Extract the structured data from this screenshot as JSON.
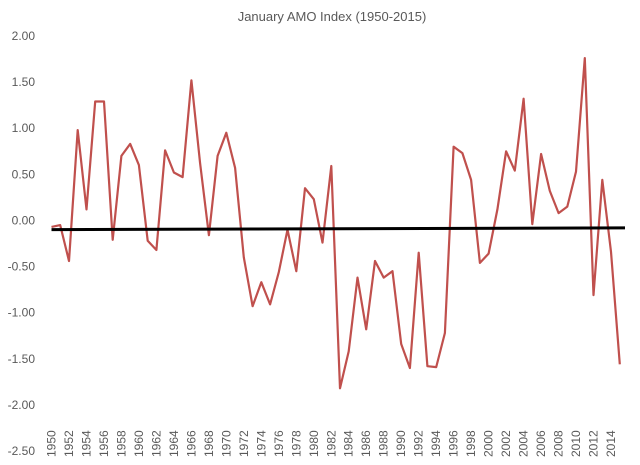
{
  "chart_data": {
    "type": "line",
    "title": "January AMO Index (1950-2015)",
    "xlabel": "",
    "ylabel": "",
    "ylim": [
      -2.5,
      2.0
    ],
    "y_ticks": [
      "2.00",
      "1.50",
      "1.00",
      "0.50",
      "0.00",
      "-0.50",
      "-1.00",
      "-1.50",
      "-2.00",
      "-2.50"
    ],
    "x_tick_labels": [
      "1950",
      "1952",
      "1954",
      "1956",
      "1958",
      "1960",
      "1962",
      "1964",
      "1966",
      "1968",
      "1970",
      "1972",
      "1974",
      "1976",
      "1978",
      "1980",
      "1982",
      "1984",
      "1986",
      "1988",
      "1990",
      "1992",
      "1994",
      "1996",
      "1998",
      "2000",
      "2002",
      "2004",
      "2006",
      "2008",
      "2010",
      "2012",
      "2014"
    ],
    "grid": false,
    "legend": "none",
    "line_color": "#c0504d",
    "reference_line_color": "#000000",
    "series": [
      {
        "x": [
          1950,
          1951,
          1952,
          1953,
          1954,
          1955,
          1956,
          1957,
          1958,
          1959,
          1960,
          1961,
          1962,
          1963,
          1964,
          1965,
          1966,
          1967,
          1968,
          1969,
          1970,
          1971,
          1972,
          1973,
          1974,
          1975,
          1976,
          1977,
          1978,
          1979,
          1980,
          1981,
          1982,
          1983,
          1984,
          1985,
          1986,
          1987,
          1988,
          1989,
          1990,
          1991,
          1992,
          1993,
          1994,
          1995,
          1996,
          1997,
          1998,
          1999,
          2000,
          2001,
          2002,
          2003,
          2004,
          2005,
          2006,
          2007,
          2008,
          2009,
          2010,
          2011,
          2012,
          2013,
          2014,
          2015
        ],
        "values": [
          -0.07,
          -0.05,
          -0.44,
          0.98,
          0.12,
          1.29,
          1.29,
          -0.21,
          0.7,
          0.83,
          0.6,
          -0.22,
          -0.32,
          0.76,
          0.52,
          0.47,
          1.52,
          0.62,
          -0.16,
          0.7,
          0.95,
          0.57,
          -0.4,
          -0.93,
          -0.67,
          -0.91,
          -0.56,
          -0.1,
          -0.55,
          0.35,
          0.23,
          -0.24,
          0.59,
          -1.82,
          -1.42,
          -0.62,
          -1.18,
          -0.44,
          -0.62,
          -0.55,
          -1.34,
          -1.6,
          -0.35,
          -1.58,
          -1.59,
          -1.22,
          0.8,
          0.73,
          0.44,
          -0.46,
          -0.36,
          0.12,
          0.75,
          0.54,
          1.32,
          -0.04,
          0.72,
          0.32,
          0.08,
          0.15,
          0.53,
          1.76,
          -0.81,
          0.44,
          -0.34,
          -1.56
        ]
      }
    ],
    "reference_line": {
      "from": [
        1950,
        -0.1
      ],
      "to": [
        2015.6,
        -0.08
      ]
    }
  }
}
